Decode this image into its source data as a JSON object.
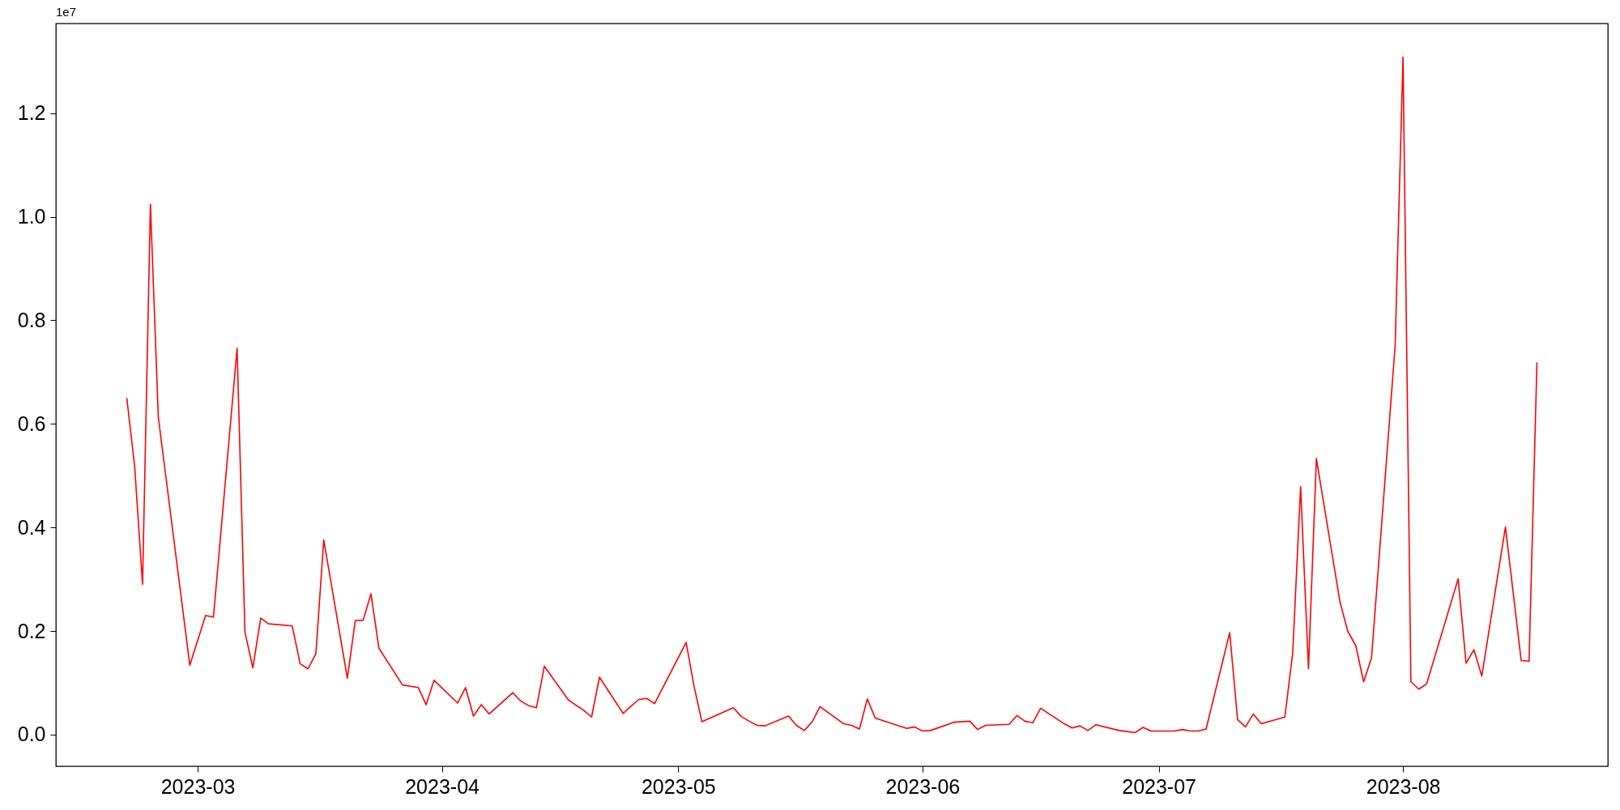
{
  "chart_data": {
    "type": "line",
    "x": [
      "2023-02-20",
      "2023-02-21",
      "2023-02-22",
      "2023-02-23",
      "2023-02-24",
      "2023-02-27",
      "2023-02-28",
      "2023-03-02",
      "2023-03-03",
      "2023-03-06",
      "2023-03-07",
      "2023-03-08",
      "2023-03-09",
      "2023-03-10",
      "2023-03-13",
      "2023-03-14",
      "2023-03-15",
      "2023-03-16",
      "2023-03-17",
      "2023-03-20",
      "2023-03-21",
      "2023-03-22",
      "2023-03-23",
      "2023-03-24",
      "2023-03-27",
      "2023-03-29",
      "2023-03-30",
      "2023-03-31",
      "2023-04-03",
      "2023-04-04",
      "2023-04-05",
      "2023-04-06",
      "2023-04-07",
      "2023-04-10",
      "2023-04-11",
      "2023-04-12",
      "2023-04-13",
      "2023-04-14",
      "2023-04-17",
      "2023-04-18",
      "2023-04-19",
      "2023-04-20",
      "2023-04-21",
      "2023-04-24",
      "2023-04-25",
      "2023-04-26",
      "2023-04-27",
      "2023-04-28",
      "2023-05-02",
      "2023-05-03",
      "2023-05-04",
      "2023-05-08",
      "2023-05-09",
      "2023-05-10",
      "2023-05-11",
      "2023-05-12",
      "2023-05-15",
      "2023-05-16",
      "2023-05-17",
      "2023-05-18",
      "2023-05-19",
      "2023-05-22",
      "2023-05-23",
      "2023-05-24",
      "2023-05-25",
      "2023-05-26",
      "2023-05-30",
      "2023-05-31",
      "2023-06-01",
      "2023-06-02",
      "2023-06-05",
      "2023-06-07",
      "2023-06-08",
      "2023-06-09",
      "2023-06-12",
      "2023-06-13",
      "2023-06-14",
      "2023-06-15",
      "2023-06-16",
      "2023-06-19",
      "2023-06-20",
      "2023-06-21",
      "2023-06-22",
      "2023-06-23",
      "2023-06-26",
      "2023-06-28",
      "2023-06-29",
      "2023-06-30",
      "2023-07-03",
      "2023-07-04",
      "2023-07-05",
      "2023-07-06",
      "2023-07-07",
      "2023-07-10",
      "2023-07-11",
      "2023-07-12",
      "2023-07-13",
      "2023-07-14",
      "2023-07-17",
      "2023-07-18",
      "2023-07-19",
      "2023-07-20",
      "2023-07-21",
      "2023-07-24",
      "2023-07-25",
      "2023-07-26",
      "2023-07-27",
      "2023-07-28",
      "2023-07-31",
      "2023-08-01",
      "2023-08-02",
      "2023-08-03",
      "2023-08-04",
      "2023-08-08",
      "2023-08-09",
      "2023-08-10",
      "2023-08-11",
      "2023-08-14",
      "2023-08-16",
      "2023-08-17",
      "2023-08-18"
    ],
    "values": [
      0.65,
      0.518,
      0.29,
      1.024,
      0.613,
      0.254,
      0.134,
      0.23,
      0.227,
      0.746,
      0.198,
      0.129,
      0.225,
      0.214,
      0.21,
      0.137,
      0.127,
      0.156,
      0.376,
      0.109,
      0.22,
      0.221,
      0.272,
      0.167,
      0.096,
      0.091,
      0.058,
      0.105,
      0.061,
      0.091,
      0.036,
      0.058,
      0.04,
      0.081,
      0.065,
      0.056,
      0.052,
      0.132,
      0.068,
      0.057,
      0.047,
      0.034,
      0.111,
      0.041,
      0.055,
      0.068,
      0.07,
      0.06,
      0.178,
      0.094,
      0.025,
      0.052,
      0.035,
      0.026,
      0.018,
      0.017,
      0.036,
      0.018,
      0.008,
      0.025,
      0.054,
      0.021,
      0.018,
      0.011,
      0.069,
      0.032,
      0.012,
      0.015,
      0.007,
      0.008,
      0.024,
      0.026,
      0.01,
      0.018,
      0.02,
      0.037,
      0.026,
      0.023,
      0.051,
      0.021,
      0.013,
      0.017,
      0.008,
      0.019,
      0.008,
      0.004,
      0.014,
      0.007,
      0.007,
      0.01,
      0.007,
      0.007,
      0.011,
      0.197,
      0.029,
      0.015,
      0.04,
      0.021,
      0.034,
      0.158,
      0.479,
      0.127,
      0.533,
      0.256,
      0.199,
      0.172,
      0.102,
      0.148,
      0.751,
      1.308,
      0.102,
      0.088,
      0.098,
      0.301,
      0.138,
      0.164,
      0.113,
      0.401,
      0.143,
      0.142,
      0.719
    ],
    "color": "#ff0000",
    "xlim": [
      "2023-02-11",
      "2023-08-27"
    ],
    "xticks": [
      {
        "value": "2023-03-01",
        "label": "2023-03"
      },
      {
        "value": "2023-04-01",
        "label": "2023-04"
      },
      {
        "value": "2023-05-01",
        "label": "2023-05"
      },
      {
        "value": "2023-06-01",
        "label": "2023-06"
      },
      {
        "value": "2023-07-01",
        "label": "2023-07"
      },
      {
        "value": "2023-08-01",
        "label": "2023-08"
      }
    ],
    "ylim": [
      -0.061,
      1.373
    ],
    "yticks": [
      {
        "value": 0,
        "label": "0.0"
      },
      {
        "value": 0.2,
        "label": "0.2"
      },
      {
        "value": 0.4,
        "label": "0.4"
      },
      {
        "value": 0.6,
        "label": "0.6"
      },
      {
        "value": 0.8,
        "label": "0.8"
      },
      {
        "value": 1.0,
        "label": "1.0"
      },
      {
        "value": 1.2,
        "label": "1.2"
      }
    ],
    "annotations": [
      "1e7"
    ]
  }
}
